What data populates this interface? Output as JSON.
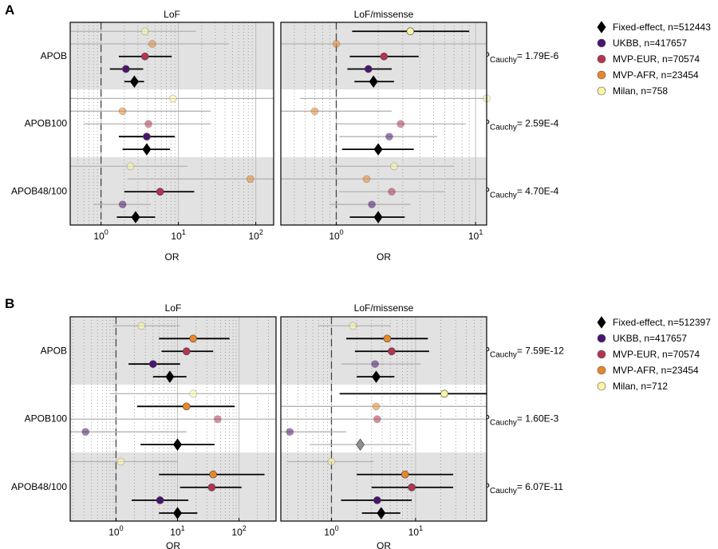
{
  "figure": {
    "panels": [
      {
        "letter": "A"
      },
      {
        "letter": "B"
      }
    ],
    "p_prefix": "P",
    "p_subscript": "Cauchy",
    "p_equals": "="
  },
  "chart_data": [
    {
      "type": "forest",
      "panel": "A",
      "xlabel": "OR",
      "xscale": "log",
      "reference_line": 1,
      "genes": [
        "APOB",
        "APOB100",
        "APOB48/100"
      ],
      "p_cauchy": [
        "1.79E-6",
        "2.59E-4",
        "4.70E-4"
      ],
      "legend": [
        {
          "name": "Fixed-effect",
          "n": "n=512443",
          "marker": "diamond",
          "color": "#000000"
        },
        {
          "name": "UKBB",
          "n": "n=417657",
          "marker": "circle",
          "color": "#4a1470"
        },
        {
          "name": "MVP-EUR",
          "n": "n=70574",
          "marker": "circle",
          "color": "#b5344f"
        },
        {
          "name": "MVP-AFR",
          "n": "n=23454",
          "marker": "circle",
          "color": "#e8872a"
        },
        {
          "name": "Milan",
          "n": "n=758",
          "marker": "circle",
          "color": "#fbf5a3"
        }
      ],
      "subplots": [
        {
          "title": "LoF",
          "xlim": [
            0.4,
            170
          ],
          "ticks": [
            {
              "value": 1,
              "base": "10",
              "exp": "0"
            },
            {
              "value": 10,
              "base": "10",
              "exp": "1"
            },
            {
              "value": 100,
              "base": "10",
              "exp": "2"
            }
          ],
          "rows": {
            "APOB": [
              {
                "series": "Milan",
                "or": 3.7,
                "lo": 0.4,
                "hi": 17,
                "sig": false
              },
              {
                "series": "MVP-AFR",
                "or": 4.6,
                "lo": 0.4,
                "hi": 45,
                "sig": false
              },
              {
                "series": "MVP-EUR",
                "or": 3.7,
                "lo": 1.7,
                "hi": 8.2,
                "sig": true
              },
              {
                "series": "UKBB",
                "or": 2.1,
                "lo": 1.3,
                "hi": 3.5,
                "sig": true
              },
              {
                "series": "Fixed-effect",
                "or": 2.7,
                "lo": 2.0,
                "hi": 3.6,
                "sig": true
              }
            ],
            "APOB100": [
              {
                "series": "Milan",
                "or": 8.5,
                "lo": 0.4,
                "hi": 170,
                "sig": false
              },
              {
                "series": "MVP-AFR",
                "or": 1.9,
                "lo": 0.4,
                "hi": 26,
                "sig": false
              },
              {
                "series": "MVP-EUR",
                "or": 4.1,
                "lo": 0.6,
                "hi": 26,
                "sig": false
              },
              {
                "series": "UKBB",
                "or": 3.9,
                "lo": 1.7,
                "hi": 9.0,
                "sig": true
              },
              {
                "series": "Fixed-effect",
                "or": 3.9,
                "lo": 1.9,
                "hi": 7.8,
                "sig": true
              }
            ],
            "APOB48/100": [
              {
                "series": "Milan",
                "or": 2.4,
                "lo": 0.4,
                "hi": 13,
                "sig": false
              },
              {
                "series": "MVP-AFR",
                "or": 85,
                "lo": 2.2,
                "hi": 170,
                "sig": false
              },
              {
                "series": "MVP-EUR",
                "or": 5.8,
                "lo": 2.0,
                "hi": 16,
                "sig": true
              },
              {
                "series": "UKBB",
                "or": 1.9,
                "lo": 0.8,
                "hi": 4.4,
                "sig": false
              },
              {
                "series": "Fixed-effect",
                "or": 2.8,
                "lo": 1.6,
                "hi": 5.0,
                "sig": true
              }
            ]
          }
        },
        {
          "title": "LoF/missense",
          "xlim": [
            0.4,
            12
          ],
          "ticks": [
            {
              "value": 1,
              "base": "10",
              "exp": "0"
            },
            {
              "value": 10,
              "base": "10",
              "exp": "1"
            }
          ],
          "rows": {
            "APOB": [
              {
                "series": "Milan",
                "or": 3.4,
                "lo": 1.3,
                "hi": 9.0,
                "sig": true
              },
              {
                "series": "MVP-AFR",
                "or": 1.0,
                "lo": 0.4,
                "hi": 12,
                "sig": false
              },
              {
                "series": "MVP-EUR",
                "or": 2.2,
                "lo": 1.25,
                "hi": 3.9,
                "sig": true
              },
              {
                "series": "UKBB",
                "or": 1.7,
                "lo": 1.2,
                "hi": 2.5,
                "sig": true
              },
              {
                "series": "Fixed-effect",
                "or": 1.85,
                "lo": 1.35,
                "hi": 2.6,
                "sig": true
              }
            ],
            "APOB100": [
              {
                "series": "Milan",
                "or": 12,
                "lo": 0.55,
                "hi": 12,
                "sig": false
              },
              {
                "series": "MVP-AFR",
                "or": 0.7,
                "lo": 0.4,
                "hi": 2.5,
                "sig": false
              },
              {
                "series": "MVP-EUR",
                "or": 2.9,
                "lo": 1.0,
                "hi": 8.5,
                "sig": false
              },
              {
                "series": "UKBB",
                "or": 2.4,
                "lo": 1.05,
                "hi": 5.3,
                "sig": false
              },
              {
                "series": "Fixed-effect",
                "or": 2.0,
                "lo": 1.1,
                "hi": 3.6,
                "sig": true
              }
            ],
            "APOB48/100": [
              {
                "series": "Milan",
                "or": 2.6,
                "lo": 0.9,
                "hi": 7.0,
                "sig": false
              },
              {
                "series": "MVP-AFR",
                "or": 1.65,
                "lo": 0.4,
                "hi": 12,
                "sig": false
              },
              {
                "series": "MVP-EUR",
                "or": 2.5,
                "lo": 1.05,
                "hi": 6.0,
                "sig": false
              },
              {
                "series": "UKBB",
                "or": 1.8,
                "lo": 0.9,
                "hi": 3.4,
                "sig": false
              },
              {
                "series": "Fixed-effect",
                "or": 2.0,
                "lo": 1.25,
                "hi": 3.1,
                "sig": true
              }
            ]
          }
        }
      ]
    },
    {
      "type": "forest",
      "panel": "B",
      "xlabel": "OR",
      "xscale": "log",
      "reference_line": 1,
      "genes": [
        "APOB",
        "APOB100",
        "APOB48/100"
      ],
      "p_cauchy": [
        "7.59E-12",
        "1.60E-3",
        "6.07E-11"
      ],
      "legend": [
        {
          "name": "Fixed-effect",
          "n": "n=512397",
          "marker": "diamond",
          "color": "#000000"
        },
        {
          "name": "UKBB",
          "n": "n=417657",
          "marker": "circle",
          "color": "#4a1470"
        },
        {
          "name": "MVP-EUR",
          "n": "n=70574",
          "marker": "circle",
          "color": "#b5344f"
        },
        {
          "name": "MVP-AFR",
          "n": "n=23454",
          "marker": "circle",
          "color": "#e8872a"
        },
        {
          "name": "Milan",
          "n": "n=712",
          "marker": "circle",
          "color": "#fbf5a3"
        }
      ],
      "subplots": [
        {
          "title": "LoF",
          "xlim": [
            0.18,
            400
          ],
          "ticks": [
            {
              "value": 1,
              "base": "10",
              "exp": "0"
            },
            {
              "value": 10,
              "base": "10",
              "exp": "1"
            },
            {
              "value": 100,
              "base": "10",
              "exp": "2"
            }
          ],
          "rows": {
            "APOB": [
              {
                "series": "Milan",
                "or": 2.6,
                "lo": 0.9,
                "hi": 11,
                "sig": false
              },
              {
                "series": "MVP-AFR",
                "or": 18,
                "lo": 5.0,
                "hi": 70,
                "sig": true
              },
              {
                "series": "MVP-EUR",
                "or": 14,
                "lo": 5.5,
                "hi": 38,
                "sig": true
              },
              {
                "series": "UKBB",
                "or": 4.0,
                "lo": 1.6,
                "hi": 11,
                "sig": true
              },
              {
                "series": "Fixed-effect",
                "or": 7.5,
                "lo": 4.0,
                "hi": 14,
                "sig": true
              }
            ],
            "APOB100": [
              {
                "series": "Milan",
                "or": 18,
                "lo": 0.8,
                "hi": 400,
                "sig": false
              },
              {
                "series": "MVP-AFR",
                "or": 14,
                "lo": 2.2,
                "hi": 85,
                "sig": true
              },
              {
                "series": "MVP-EUR",
                "or": 45,
                "lo": 0.18,
                "hi": 400,
                "sig": false
              },
              {
                "series": "UKBB",
                "or": 0.32,
                "lo": 0.18,
                "hi": 14,
                "sig": false
              },
              {
                "series": "Fixed-effect",
                "or": 10,
                "lo": 2.5,
                "hi": 40,
                "sig": true
              }
            ],
            "APOB48/100": [
              {
                "series": "Milan",
                "or": 1.2,
                "lo": 0.18,
                "hi": 10,
                "sig": false
              },
              {
                "series": "MVP-AFR",
                "or": 38,
                "lo": 5.0,
                "hi": 260,
                "sig": true
              },
              {
                "series": "MVP-EUR",
                "or": 36,
                "lo": 11,
                "hi": 110,
                "sig": true
              },
              {
                "series": "UKBB",
                "or": 5.2,
                "lo": 1.8,
                "hi": 15,
                "sig": true
              },
              {
                "series": "Fixed-effect",
                "or": 10,
                "lo": 5.0,
                "hi": 21,
                "sig": true
              }
            ]
          }
        },
        {
          "title": "LoF/missense",
          "xlim": [
            0.25,
            70
          ],
          "ticks": [
            {
              "value": 1,
              "base": "10",
              "exp": "0"
            },
            {
              "value": 10,
              "base": "10",
              "exp": "1"
            }
          ],
          "rows": {
            "APOB": [
              {
                "series": "Milan",
                "or": 1.8,
                "lo": 0.7,
                "hi": 5.0,
                "sig": false
              },
              {
                "series": "MVP-AFR",
                "or": 4.6,
                "lo": 1.5,
                "hi": 14,
                "sig": true
              },
              {
                "series": "MVP-EUR",
                "or": 5.2,
                "lo": 1.9,
                "hi": 14.5,
                "sig": true
              },
              {
                "series": "UKBB",
                "or": 3.3,
                "lo": 1.3,
                "hi": 11.5,
                "sig": false
              },
              {
                "series": "Fixed-effect",
                "or": 3.4,
                "lo": 2.0,
                "hi": 5.6,
                "sig": true
              }
            ],
            "APOB100": [
              {
                "series": "Milan",
                "or": 22,
                "lo": 1.25,
                "hi": 70,
                "sig": true
              },
              {
                "series": "MVP-AFR",
                "or": 3.4,
                "lo": 0.25,
                "hi": 70,
                "sig": false
              },
              {
                "series": "MVP-EUR",
                "or": 3.5,
                "lo": 0.25,
                "hi": 70,
                "sig": false
              },
              {
                "series": "UKBB",
                "or": 0.32,
                "lo": 0.25,
                "hi": 1.5,
                "sig": false
              },
              {
                "series": "Fixed-effect",
                "or": 2.2,
                "lo": 0.55,
                "hi": 8.7,
                "sig": false
              }
            ],
            "APOB48/100": [
              {
                "series": "Milan",
                "or": 1.0,
                "lo": 0.3,
                "hi": 3.2,
                "sig": false
              },
              {
                "series": "MVP-AFR",
                "or": 7.5,
                "lo": 2.0,
                "hi": 28,
                "sig": true
              },
              {
                "series": "MVP-EUR",
                "or": 9.0,
                "lo": 3.0,
                "hi": 28,
                "sig": true
              },
              {
                "series": "UKBB",
                "or": 3.5,
                "lo": 1.3,
                "hi": 9.0,
                "sig": true
              },
              {
                "series": "Fixed-effect",
                "or": 3.9,
                "lo": 2.3,
                "hi": 6.6,
                "sig": true
              }
            ]
          }
        }
      ]
    }
  ]
}
